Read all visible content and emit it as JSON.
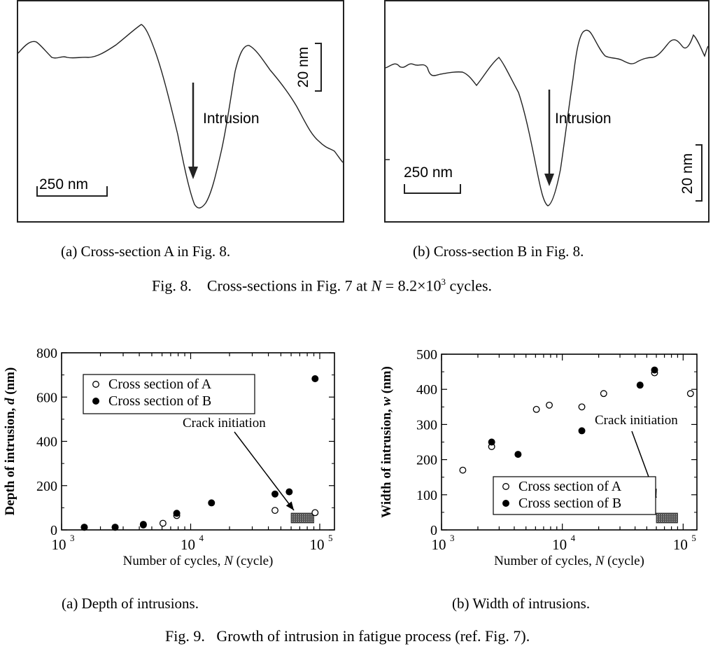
{
  "fig8": {
    "panel_a": {
      "label": "Intrusion",
      "scale_h": "250 nm",
      "scale_v": "20 nm",
      "caption": "(a) Cross-section A in Fig. 8."
    },
    "panel_b": {
      "label": "Intrusion",
      "scale_h": "250 nm",
      "scale_v": "20 nm",
      "caption": "(b) Cross-section B in Fig. 8."
    },
    "caption_prefix": "Fig. 8.",
    "caption_text": "Cross-sections in Fig. 7 at ",
    "caption_N": "N",
    "caption_eq": " = 8.2×10",
    "caption_exp": "3",
    "caption_tail": " cycles."
  },
  "fig9": {
    "caption": "Fig. 9.   Growth of intrusion in fatigue process (ref. Fig. 7).",
    "crack_label": "Crack initiation",
    "colors": {
      "open_marker": "#ffffff",
      "filled_marker": "#000000",
      "hatch": "#555555"
    }
  },
  "chart_data": [
    {
      "type": "scatter",
      "title": "",
      "xlabel_main": "Number of cycles, ",
      "xlabel_sym": "N",
      "xlabel_unit": " (cycle)",
      "ylabel_main": "Depth of intrusion, ",
      "ylabel_sym": "d",
      "ylabel_unit": " (nm)",
      "xscale": "log",
      "xlim": [
        1000,
        130000
      ],
      "ylim": [
        0,
        800
      ],
      "xticks": [
        "10",
        "10",
        "10"
      ],
      "xtick_exps": [
        "3",
        "4",
        "5"
      ],
      "yticks": [
        "0",
        "200",
        "400",
        "600",
        "800"
      ],
      "legend_position": "top-left",
      "crack_initiation_range": [
        60000,
        90000
      ],
      "series": [
        {
          "name": "Cross section of A",
          "marker": "open",
          "x": [
            1500,
            2600,
            4300,
            6100,
            7800,
            45000,
            92000
          ],
          "y": [
            12,
            12,
            22,
            30,
            65,
            88,
            78
          ]
        },
        {
          "name": "Cross section of B",
          "marker": "filled",
          "x": [
            1500,
            2600,
            4300,
            7800,
            14500,
            45000,
            58000,
            92000
          ],
          "y": [
            12,
            12,
            25,
            75,
            122,
            162,
            172,
            683
          ]
        }
      ],
      "caption": "(a) Depth of intrusions."
    },
    {
      "type": "scatter",
      "title": "",
      "xlabel_main": "Number of cycles, ",
      "xlabel_sym": "N",
      "xlabel_unit": " (cycle)",
      "ylabel_main": "Width of intrusion, ",
      "ylabel_sym": "w",
      "ylabel_unit": " (nm)",
      "xscale": "log",
      "xlim": [
        1000,
        130000
      ],
      "ylim": [
        0,
        500
      ],
      "xticks": [
        "10",
        "10",
        "10"
      ],
      "xtick_exps": [
        "3",
        "4",
        "5"
      ],
      "yticks": [
        "0",
        "100",
        "200",
        "300",
        "400",
        "500"
      ],
      "legend_position": "bottom-left",
      "crack_initiation_range": [
        60000,
        90000
      ],
      "series": [
        {
          "name": "Cross section of A",
          "marker": "open",
          "x": [
            1500,
            2600,
            6100,
            7800,
            14500,
            22000,
            58000,
            115000
          ],
          "y": [
            170,
            237,
            343,
            355,
            350,
            388,
            447,
            388
          ]
        },
        {
          "name": "Cross section of B",
          "marker": "filled",
          "x": [
            2600,
            4300,
            14500,
            44000,
            58000
          ],
          "y": [
            250,
            215,
            282,
            412,
            455
          ]
        }
      ],
      "caption": "(b) Width of intrusions."
    }
  ]
}
